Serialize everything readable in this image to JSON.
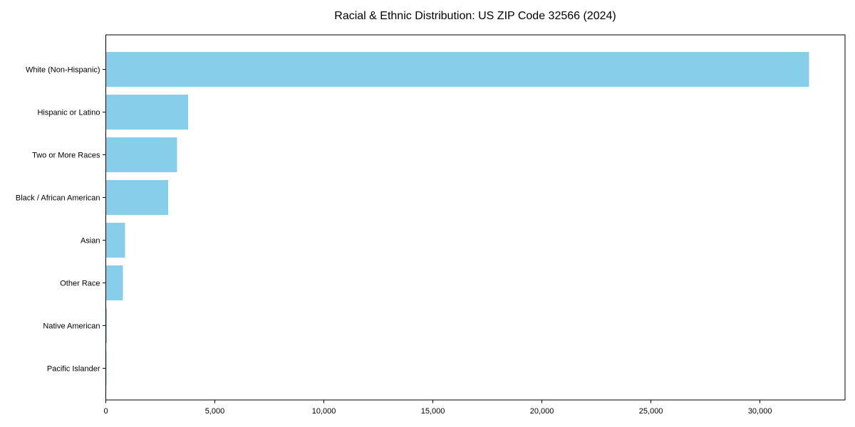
{
  "chart_data": {
    "type": "bar",
    "orientation": "horizontal",
    "title": "Racial & Ethnic Distribution: US ZIP Code 32566 (2024)",
    "categories": [
      "White (Non-Hispanic)",
      "Hispanic or Latino",
      "Two or More Races",
      "Black / African American",
      "Asian",
      "Other Race",
      "Native American",
      "Pacific Islander"
    ],
    "values": [
      32250,
      3780,
      3260,
      2860,
      875,
      780,
      50,
      30
    ],
    "xlabel": "",
    "ylabel": "",
    "xticks": [
      0,
      5000,
      10000,
      15000,
      20000,
      25000,
      30000
    ],
    "xtick_labels": [
      "0",
      "5,000",
      "10,000",
      "15,000",
      "20,000",
      "25,000",
      "30,000"
    ],
    "xlim": [
      0,
      33900
    ],
    "grid": false,
    "legend": null,
    "bar_color": "#87CEEB",
    "axis_color": "#000000",
    "text_color": "#000000",
    "background": "#FFFFFF"
  }
}
